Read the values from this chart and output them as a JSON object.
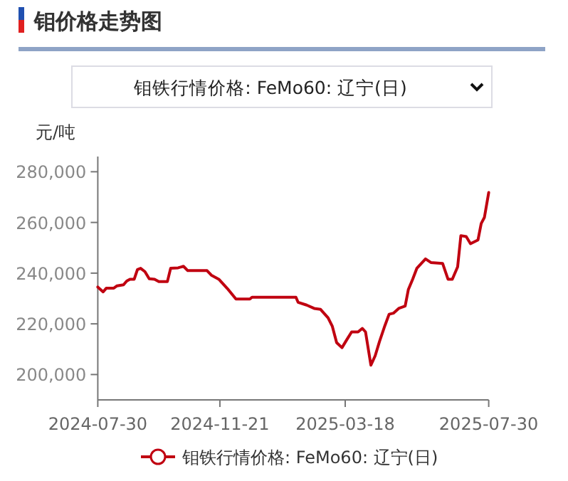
{
  "chart_data": {
    "type": "line",
    "title": "钼价格走势图",
    "subtitle": "钼铁行情价格: FeMo60: 辽宁(日)",
    "ylabel": "元/吨",
    "x": [
      "2024-07-30",
      "2024-08-04",
      "2024-08-07",
      "2024-08-14",
      "2024-08-17",
      "2024-08-23",
      "2024-08-26",
      "2024-08-29",
      "2024-09-02",
      "2024-09-05",
      "2024-09-08",
      "2024-09-12",
      "2024-09-16",
      "2024-09-21",
      "2024-09-25",
      "2024-10-03",
      "2024-10-06",
      "2024-10-13",
      "2024-10-18",
      "2024-10-22",
      "2024-11-09",
      "2024-11-13",
      "2024-11-20",
      "2024-11-28",
      "2024-12-06",
      "2024-12-19",
      "2024-12-21",
      "2025-01-31",
      "2025-02-02",
      "2025-02-10",
      "2025-02-17",
      "2025-02-23",
      "2025-03-02",
      "2025-03-06",
      "2025-03-10",
      "2025-03-15",
      "2025-03-19",
      "2025-03-24",
      "2025-03-30",
      "2025-04-03",
      "2025-04-06",
      "2025-04-11",
      "2025-04-15",
      "2025-04-19",
      "2025-04-24",
      "2025-04-28",
      "2025-05-02",
      "2025-05-07",
      "2025-05-13",
      "2025-05-16",
      "2025-05-20",
      "2025-05-24",
      "2025-06-01",
      "2025-06-06",
      "2025-06-17",
      "2025-06-22",
      "2025-06-26",
      "2025-07-01",
      "2025-07-04",
      "2025-07-09",
      "2025-07-13",
      "2025-07-20",
      "2025-07-23",
      "2025-07-26",
      "2025-07-30"
    ],
    "series": [
      {
        "name": "钼铁行情价格: FeMo60: 辽宁(日)",
        "color": "#c00010",
        "values": [
          234500,
          232600,
          234100,
          234100,
          235000,
          235400,
          236900,
          237600,
          237600,
          241400,
          241900,
          240600,
          237800,
          237600,
          236700,
          236700,
          241900,
          242100,
          242700,
          241000,
          241000,
          239200,
          237600,
          233900,
          229800,
          229800,
          230500,
          230500,
          228500,
          227400,
          226100,
          225700,
          222400,
          219000,
          212600,
          210600,
          213400,
          216800,
          216800,
          218200,
          216800,
          203700,
          207400,
          213000,
          219200,
          223800,
          224200,
          226100,
          227000,
          233600,
          237600,
          242000,
          245600,
          244200,
          243800,
          237600,
          237600,
          242500,
          254800,
          254400,
          251600,
          253100,
          259600,
          262000,
          271800
        ]
      }
    ],
    "xlim": [
      "2024-07-30",
      "2025-07-30"
    ],
    "xticks": [
      "2024-07-30",
      "2024-11-21",
      "2025-03-18",
      "2025-07-30"
    ],
    "ylim": [
      190000,
      286000
    ],
    "yticks": [
      {
        "value": 200000,
        "label": "200,000"
      },
      {
        "value": 220000,
        "label": "220,000"
      },
      {
        "value": 240000,
        "label": "240,000"
      },
      {
        "value": 260000,
        "label": "260,000"
      },
      {
        "value": 280000,
        "label": "280,000"
      }
    ],
    "legend": "bottom",
    "grid": false
  }
}
